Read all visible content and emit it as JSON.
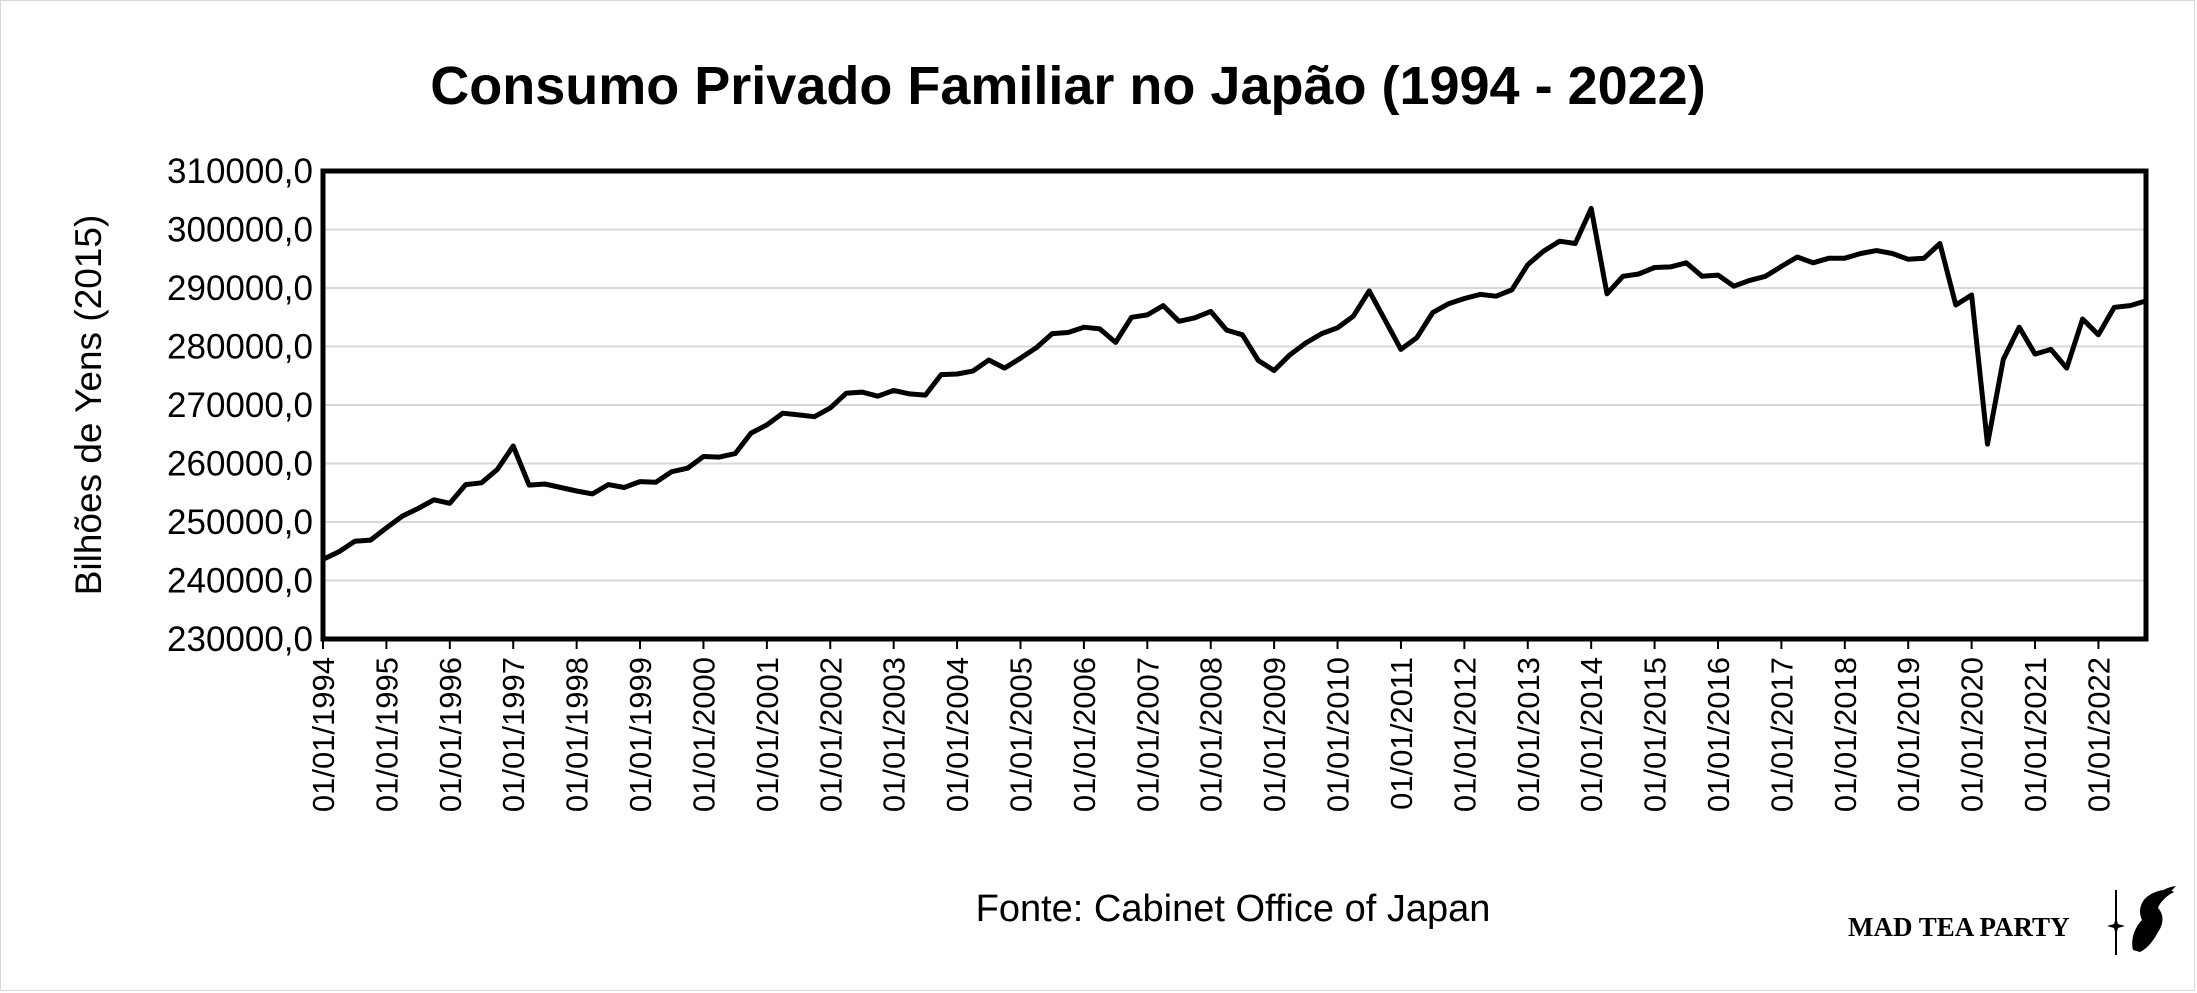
{
  "chart_data": {
    "type": "line",
    "title": "Consumo Privado Familiar no Japão (1994 - 2022)",
    "xlabel": "",
    "ylabel": "Bilhões de Yens (2015)",
    "ylim": [
      230000,
      310000
    ],
    "yticks": [
      230000,
      240000,
      250000,
      260000,
      270000,
      280000,
      290000,
      300000,
      310000
    ],
    "ytick_labels": [
      "230000,0",
      "240000,0",
      "250000,0",
      "260000,0",
      "270000,0",
      "280000,0",
      "290000,0",
      "300000,0",
      "310000,0"
    ],
    "x_start_year": 1994,
    "quarters_per_year": 4,
    "xtick_labels": [
      "01/01/1994",
      "01/01/1995",
      "01/01/1996",
      "01/01/1997",
      "01/01/1998",
      "01/01/1999",
      "01/01/2000",
      "01/01/2001",
      "01/01/2002",
      "01/01/2003",
      "01/01/2004",
      "01/01/2005",
      "01/01/2006",
      "01/01/2007",
      "01/01/2008",
      "01/01/2009",
      "01/01/2010",
      "01/01/2011",
      "01/01/2012",
      "01/01/2013",
      "01/01/2014",
      "01/01/2015",
      "01/01/2016",
      "01/01/2017",
      "01/01/2018",
      "01/01/2019",
      "01/01/2020",
      "01/01/2021",
      "01/01/2022"
    ],
    "grid": true,
    "series": [
      {
        "name": "Consumo Privado Familiar",
        "values": [
          243600,
          244900,
          246700,
          246900,
          249000,
          251000,
          252300,
          253800,
          253200,
          256400,
          256700,
          259000,
          263000,
          256300,
          256500,
          255900,
          255300,
          254800,
          256400,
          255900,
          256900,
          256800,
          258600,
          259200,
          261200,
          261100,
          261700,
          265200,
          266600,
          268600,
          268300,
          268000,
          269500,
          272000,
          272200,
          271500,
          272500,
          271900,
          271700,
          275200,
          275300,
          275800,
          277700,
          276300,
          278000,
          279800,
          282200,
          282400,
          283300,
          283000,
          280700,
          285000,
          285400,
          287000,
          284300,
          284900,
          286000,
          282800,
          282000,
          277600,
          275900,
          278600,
          280600,
          282200,
          283200,
          285200,
          289500,
          284500,
          279500,
          281500,
          285800,
          287300,
          288200,
          288900,
          288600,
          289700,
          294000,
          296300,
          298000,
          297600,
          303600,
          289000,
          292000,
          292400,
          293500,
          293600,
          294300,
          292000,
          292200,
          290300,
          291300,
          292000,
          293700,
          295300,
          294300,
          295100,
          295100,
          295900,
          296400,
          295900,
          294900,
          295100,
          297600,
          287100,
          288800,
          263300,
          277800,
          283300,
          278700,
          279500,
          276300,
          284700,
          282000,
          286700,
          287000,
          287800
        ]
      }
    ],
    "source": "Fonte: Cabinet Office of Japan"
  },
  "branding": {
    "logo_text": "MAD TEA PARTY"
  },
  "colors": {
    "line": "#000000",
    "grid": "#d9d9d9",
    "border": "#000000"
  }
}
